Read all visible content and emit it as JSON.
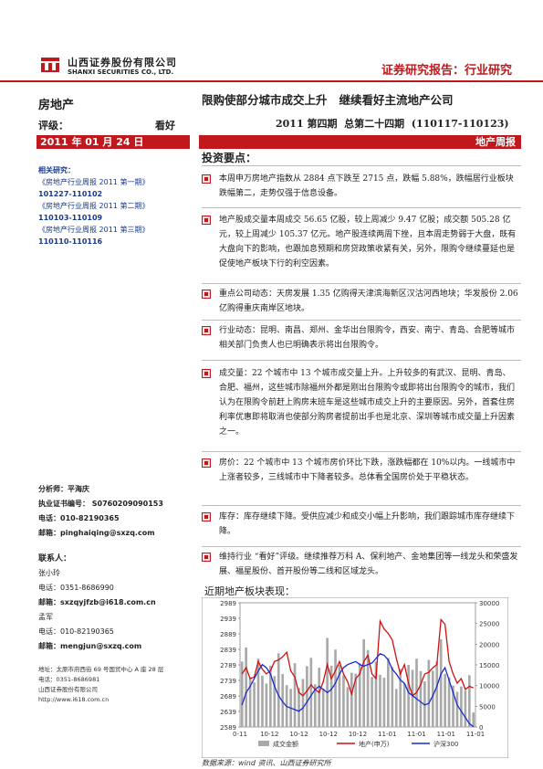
{
  "header": {
    "company_cn": "山西证券股份有限公司",
    "company_en": "SHANXI SECURITIES CO., LTD.",
    "report_type": "证券研究报告：行业研究"
  },
  "left": {
    "industry": "房地产",
    "rating_label": "评级：",
    "rating_value": "看好",
    "date": "2011 年 01 月 24 日",
    "related_title": "相关研究：",
    "related": [
      {
        "title": "《房地产行业周报 2011 第一期》",
        "code": "101227-110102"
      },
      {
        "title": "《房地产行业周报 2011 第二期》",
        "code": "110103-110109"
      },
      {
        "title": "《房地产行业周报 2011 第三期》",
        "code": "110110-110116"
      }
    ],
    "analyst": {
      "label": "分析师：平海庆",
      "cert": "执业证书编号： S0760209090153",
      "phone": "电话：010-82190365",
      "email": "邮箱：pinghaiqing@sxzq.com"
    },
    "contacts_title": "联系人：",
    "contacts": [
      {
        "name": "张小玲",
        "phone": "电话：0351-8686990",
        "email": "邮箱：sxzqyjfzb@i618.com.cn"
      },
      {
        "name": "孟军",
        "phone": "电话：010-82190365",
        "email": "邮箱：mengjun@sxzq.com"
      }
    ],
    "address_lines": [
      "地址：太原市府西街 69 号国贸中心 A 座 28 层",
      "电话：0351-8686981",
      "山西证券股份有限公司",
      "http://www.i618.com.cn"
    ]
  },
  "main": {
    "title": "限购使部分城市成交上升   继续看好主流地产公司",
    "issue": "2011 第四期  总第二十四期  (110117-110123)",
    "report_tag": "地产周报",
    "key_points": "投资要点：",
    "bullets": [
      "本周申万房地产指数从 2884 点下跌至 2715 点，跌幅 5.88%，跌幅居行业板块跌幅第二，走势仅强于信息设备。",
      "地产股成交量本周成交 56.65 亿股，较上周减少 9.47 亿股；成交额 505.28 亿元，较上周减少 105.37 亿元。地产股连续两周下挫，且本周走势弱于大盘，既有大盘向下的影响，也跟加息预期和房贷政策收紧有关，另外，限购令继续蔓延也是促使地产板块下行的利空因素。",
      "重点公司动态：天房发展 1.35 亿购得天津滨海新区汉沽河西地块；华发股份 2.06 亿购得重庆南岸区地块。",
      "行业动态：昆明、南昌、郑州、金华出台限购令，西安、南宁、青岛、合肥等城市相关部门负责人也已明确表示将出台限购令。",
      "成交量：22 个城市中 13 个城市成交量上升。上升较多的有武汉、昆明、青岛、合肥、福州，这些城市除福州外都是刚出台限购令或即将出台限购令的城市，我们认为在限购令前赶上购房末班车是这些城市成交上升的主要原因。另外，首套住房利率优惠即将取消也使部分购房者提前出手也是北京、深圳等城市成交量上升因素之一。",
      "房价：22 个城市中 13 个城市房价环比下跌，涨跌幅都在 10%以内。一线城市中上涨者较多，三线城市中下降者较多。总体看全国房价处于平稳状态。",
      "库存：库存继续下降。受供应减少和成交小幅上升影响，我们跟踪城市库存继续下降。",
      "维持行业 “看好”评级。继续推荐万科 A、保利地产、金地集团等一线龙头和荣盛发展、福星股份、首开股份等二线和区域龙头。"
    ],
    "chart_heading": "近期地产板块表现：",
    "source": "数据来源：wind 资讯、山西证券研究所"
  },
  "chart_data": {
    "type": "line",
    "x_ticks": [
      "0-11",
      "10-12",
      "10-12",
      "10-12",
      "10-12",
      "11-01",
      "11-01",
      "11-01",
      "11-01"
    ],
    "left_axis": [
      2989,
      2939,
      2889,
      2839,
      2789,
      2739,
      2689,
      2639,
      2589
    ],
    "right_axis": [
      30000,
      25000,
      20000,
      15000,
      10000,
      5000,
      0
    ],
    "left_ylim": [
      2589,
      2989
    ],
    "right_ylim": [
      0,
      30000
    ],
    "legend": [
      "成交金额",
      "地产(申万)",
      "沪深300"
    ],
    "colors": {
      "volume": "#a9a9a9",
      "property": "#d01010",
      "csi300": "#1a2bd0"
    },
    "volume": [
      15800,
      19200,
      12000,
      10800,
      16500,
      12400,
      10500,
      14800,
      12300,
      17800,
      12800,
      10100,
      9200,
      15400,
      9400,
      11600,
      14700,
      16700,
      10300,
      14300,
      9300,
      21500,
      14800,
      18700,
      15000,
      12500,
      9600,
      13100,
      12900,
      15400,
      21200,
      18600,
      12100,
      15800,
      12600,
      11900,
      16700,
      14500,
      9200,
      14000,
      10500,
      15000,
      13800,
      16500,
      13500,
      11000,
      16200,
      13600,
      15800,
      21200,
      12800,
      12000,
      10000,
      8500,
      9800,
      8800,
      12500,
      3500
    ],
    "property": [
      2760,
      2780,
      2745,
      2750,
      2800,
      2775,
      2760,
      2770,
      2800,
      2805,
      2815,
      2830,
      2770,
      2750,
      2700,
      2690,
      2705,
      2725,
      2710,
      2700,
      2735,
      2790,
      2745,
      2770,
      2800,
      2760,
      2735,
      2695,
      2745,
      2760,
      2800,
      2820,
      2760,
      2745,
      2930,
      2905,
      2890,
      2870,
      2810,
      2760,
      2790,
      2730,
      2690,
      2700,
      2725,
      2760,
      2765,
      2780,
      2790,
      2935,
      2920,
      2800,
      2760,
      2730,
      2745,
      2710,
      2720,
      2715
    ],
    "csi300": [
      2660,
      2700,
      2720,
      2745,
      2770,
      2790,
      2780,
      2760,
      2720,
      2690,
      2670,
      2655,
      2650,
      2645,
      2640,
      2650,
      2670,
      2690,
      2710,
      2720,
      2710,
      2700,
      2710,
      2730,
      2760,
      2780,
      2790,
      2795,
      2800,
      2790,
      2785,
      2790,
      2795,
      2810,
      2825,
      2820,
      2805,
      2775,
      2760,
      2740,
      2730,
      2700,
      2690,
      2680,
      2670,
      2660,
      2665,
      2690,
      2720,
      2760,
      2780,
      2740,
      2700,
      2660,
      2640,
      2620,
      2600,
      2590
    ]
  }
}
